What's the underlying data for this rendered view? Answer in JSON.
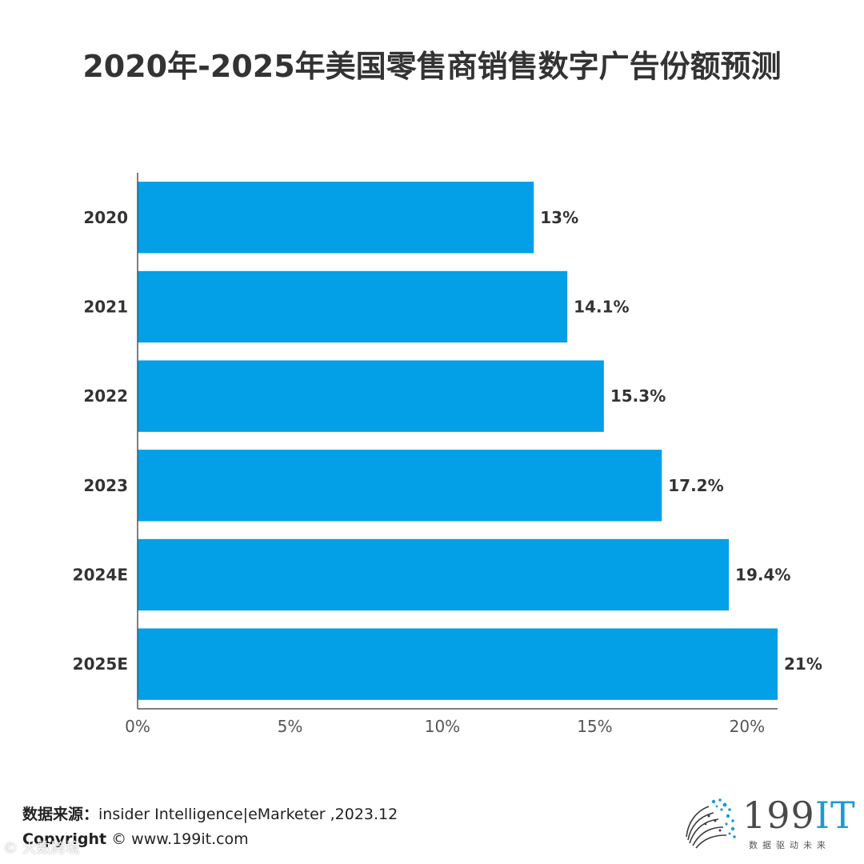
{
  "chart_data": {
    "type": "bar",
    "orientation": "horizontal",
    "title": "2020年-2025年美国零售商销售数字广告份额预测",
    "categories": [
      "2020",
      "2021",
      "2022",
      "2023",
      "2024E",
      "2025E"
    ],
    "values": [
      13,
      14.1,
      15.3,
      17.2,
      19.4,
      21
    ],
    "value_labels": [
      "13%",
      "14.1%",
      "15.3%",
      "17.2%",
      "19.4%",
      "21%"
    ],
    "xlim": [
      0,
      21
    ],
    "x_ticks": [
      0,
      5,
      10,
      15,
      20
    ],
    "x_tick_labels": [
      "0%",
      "5%",
      "10%",
      "15%",
      "20%"
    ],
    "xlabel": "",
    "ylabel": "",
    "grid": false,
    "bar_color": "#039fe7"
  },
  "footer": {
    "source_key": "数据来源：",
    "source_value": "insider Intelligence|eMarketer ,2023.12",
    "copyright_key": "Copyright",
    "copyright_value": "© www.199it.com"
  },
  "logo": {
    "brand_prefix": "199",
    "brand_suffix": "IT",
    "tagline": "数据驱动未来",
    "icon": "dotted-sphere-icon"
  },
  "watermark": {
    "text": "© 大数跨境"
  },
  "colors": {
    "bar": "#039fe7",
    "title": "#333333",
    "logo_accent": "#1a9ad6"
  }
}
